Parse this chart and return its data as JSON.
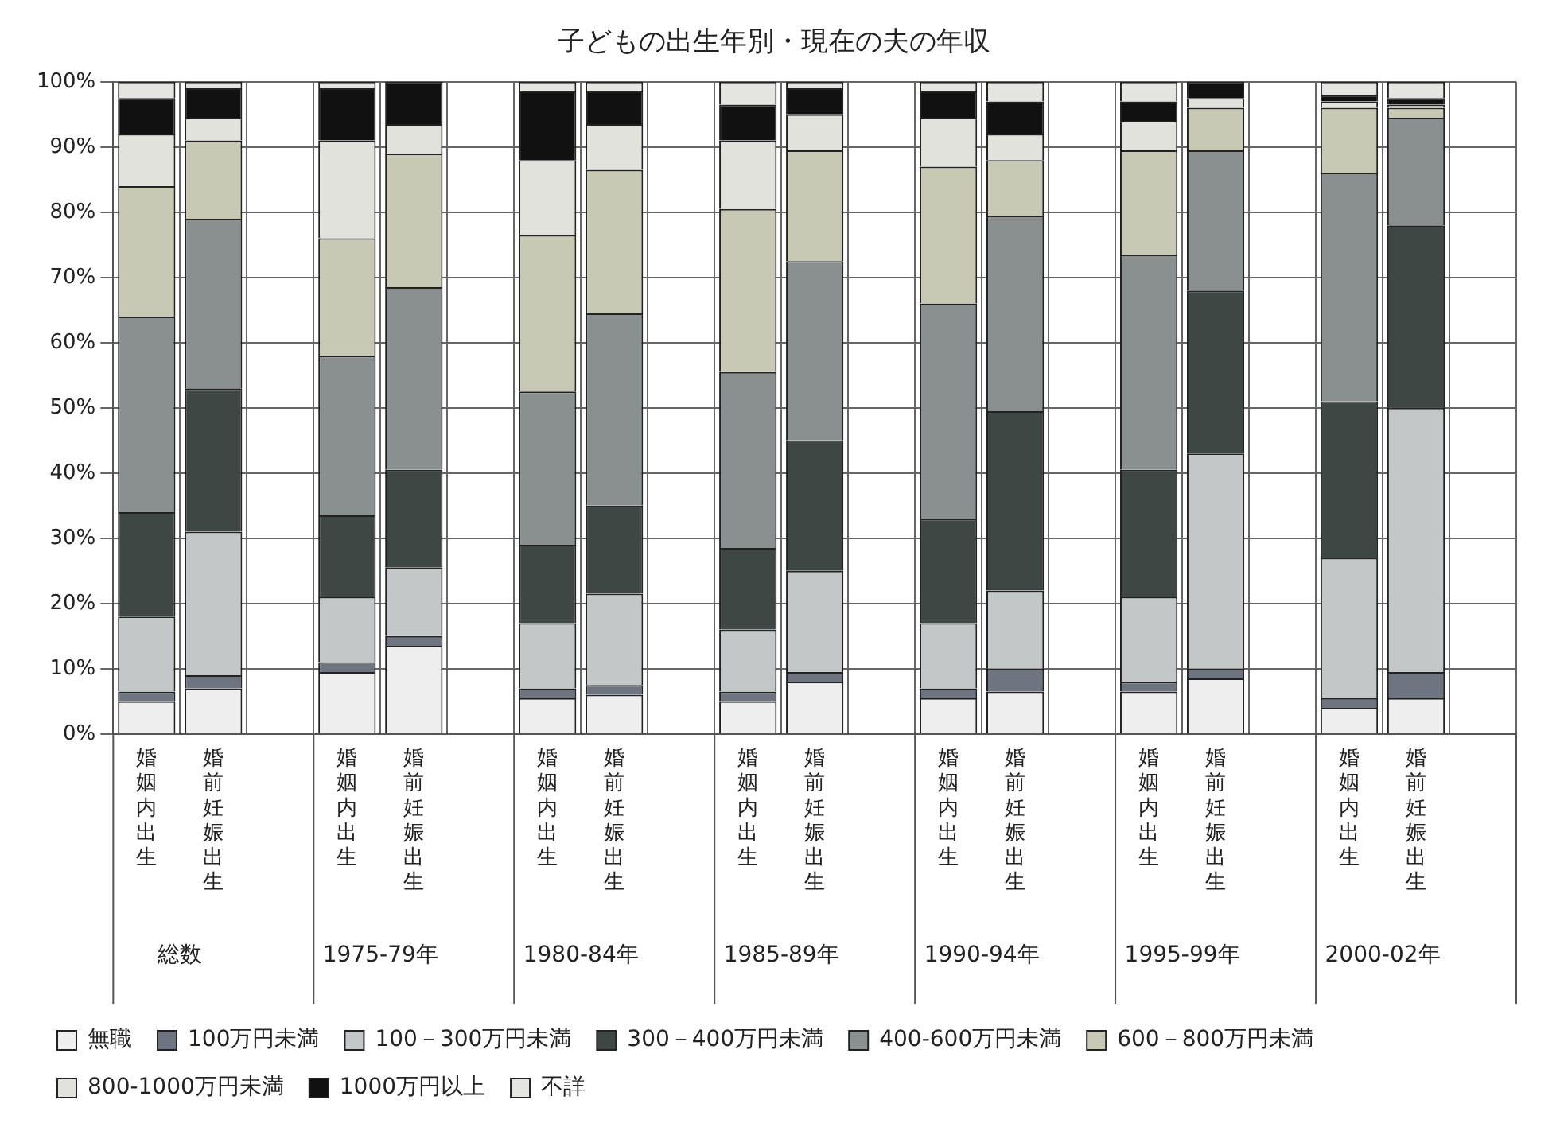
{
  "chart_data": {
    "type": "bar",
    "stacked": true,
    "title": "子どもの出生年別・現在の夫の年収",
    "categories": [
      "婚姻内出生",
      "婚前妊娠出生",
      null,
      "婚姻内出生",
      "婚前妊娠出生",
      null,
      "婚姻内出生",
      "婚前妊娠出生",
      null,
      "婚姻内出生",
      "婚前妊娠出生",
      null,
      "婚姻内出生",
      "婚前妊娠出生",
      null,
      "婚姻内出生",
      "婚前妊娠出生",
      null,
      "婚姻内出生",
      "婚前妊娠出生",
      null
    ],
    "series": [
      {
        "name": "無職",
        "color": "#eeeeee",
        "values": [
          5,
          7,
          null,
          9.5,
          13.5,
          null,
          5.5,
          6,
          null,
          5,
          8,
          null,
          5.5,
          6.5,
          null,
          6.5,
          8.5,
          null,
          4,
          5.5,
          null
        ]
      },
      {
        "name": "100万円未満",
        "color": "#6e7480",
        "values": [
          1.5,
          2,
          null,
          1.5,
          1.5,
          null,
          1.5,
          1.5,
          null,
          1.5,
          1.5,
          null,
          1.5,
          3.5,
          null,
          1.5,
          1.5,
          null,
          1.5,
          4,
          null
        ]
      },
      {
        "name": "100－300万円未満",
        "color": "#c4c7c8",
        "values": [
          11.5,
          22,
          null,
          10,
          10.5,
          null,
          10,
          14,
          null,
          9.5,
          15.5,
          null,
          10,
          12,
          null,
          13,
          33,
          null,
          21.5,
          40.5,
          null
        ]
      },
      {
        "name": "300－400万円未満",
        "color": "#3f4744",
        "values": [
          16,
          22,
          null,
          12.5,
          15,
          null,
          12,
          13.5,
          null,
          12.5,
          20,
          null,
          16,
          27.5,
          null,
          19.5,
          25,
          null,
          24,
          28,
          null
        ]
      },
      {
        "name": "400-600万円未満",
        "color": "#8a9090",
        "values": [
          30,
          26,
          null,
          24.5,
          28,
          null,
          23.5,
          29.5,
          null,
          27,
          27.5,
          null,
          33,
          30,
          null,
          33,
          21.5,
          null,
          35,
          16.5,
          null
        ]
      },
      {
        "name": "600－800万円未満",
        "color": "#c8c9b4",
        "values": [
          20,
          12,
          null,
          18,
          20.5,
          null,
          24,
          22,
          null,
          25,
          17,
          null,
          21,
          8.5,
          null,
          16,
          6.5,
          null,
          10,
          1.5,
          null
        ]
      },
      {
        "name": "800-1000万円未満",
        "color": "#e2e2dc",
        "values": [
          8,
          3.5,
          null,
          15,
          4.5,
          null,
          11.5,
          7,
          null,
          10.5,
          5.5,
          null,
          7.5,
          4,
          null,
          4.5,
          1.5,
          null,
          1,
          0.5,
          null
        ]
      },
      {
        "name": "1000万円以上",
        "color": "#111111",
        "values": [
          5.5,
          4.5,
          null,
          8,
          6.5,
          null,
          10.5,
          5,
          null,
          5.5,
          4,
          null,
          4,
          5,
          null,
          3,
          2.5,
          null,
          1,
          1,
          null
        ]
      },
      {
        "name": "不詳",
        "color": "#e4e4e0",
        "values": [
          2.5,
          1,
          null,
          1,
          0,
          null,
          1.5,
          1.5,
          null,
          3.5,
          1,
          null,
          1.5,
          3,
          null,
          3,
          0,
          null,
          2,
          2.5,
          null
        ]
      }
    ],
    "ylim": [
      0,
      100
    ],
    "yticks": [
      {
        "value": 0,
        "label": "0%"
      },
      {
        "value": 10,
        "label": "10%"
      },
      {
        "value": 20,
        "label": "20%"
      },
      {
        "value": 30,
        "label": "30%"
      },
      {
        "value": 40,
        "label": "40%"
      },
      {
        "value": 50,
        "label": "50%"
      },
      {
        "value": 60,
        "label": "60%"
      },
      {
        "value": 70,
        "label": "70%"
      },
      {
        "value": 80,
        "label": "80%"
      },
      {
        "value": 90,
        "label": "90%"
      },
      {
        "value": 100,
        "label": "100%"
      }
    ],
    "grid": true,
    "legend": "bottom",
    "annotations": [
      "総数",
      "1975-79年",
      "1980-84年",
      "1985-89年",
      "1990-94年",
      "1995-99年",
      "2000-02年"
    ]
  }
}
